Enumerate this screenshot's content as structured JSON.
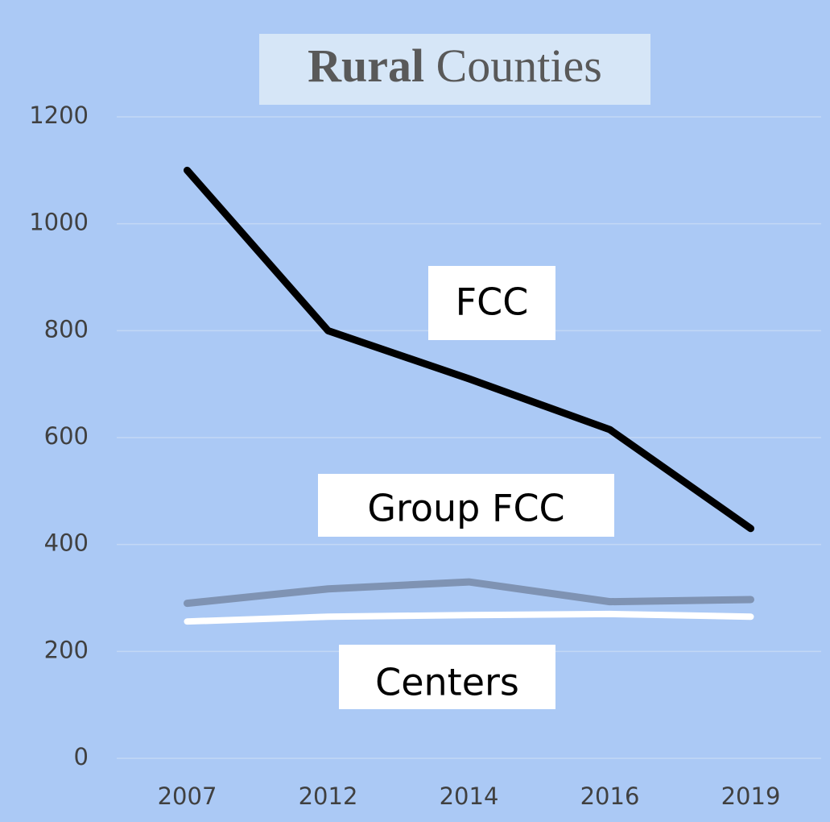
{
  "chart_data": {
    "type": "line",
    "title": [
      "Rural",
      "Counties"
    ],
    "categories": [
      "2007",
      "2012",
      "2014",
      "2016",
      "2019"
    ],
    "series": [
      {
        "name": "FCC",
        "color": "#000000",
        "values": [
          1100,
          800,
          710,
          615,
          430
        ]
      },
      {
        "name": "Group FCC",
        "color": "#7f93b3",
        "values": [
          290,
          317,
          330,
          293,
          297
        ]
      },
      {
        "name": "Centers",
        "color": "#ffffff",
        "values": [
          256,
          265,
          268,
          270,
          265
        ]
      }
    ],
    "ylim": [
      0,
      1200
    ],
    "yticks": [
      0,
      200,
      400,
      600,
      800,
      1000,
      1200
    ],
    "grid": true
  }
}
